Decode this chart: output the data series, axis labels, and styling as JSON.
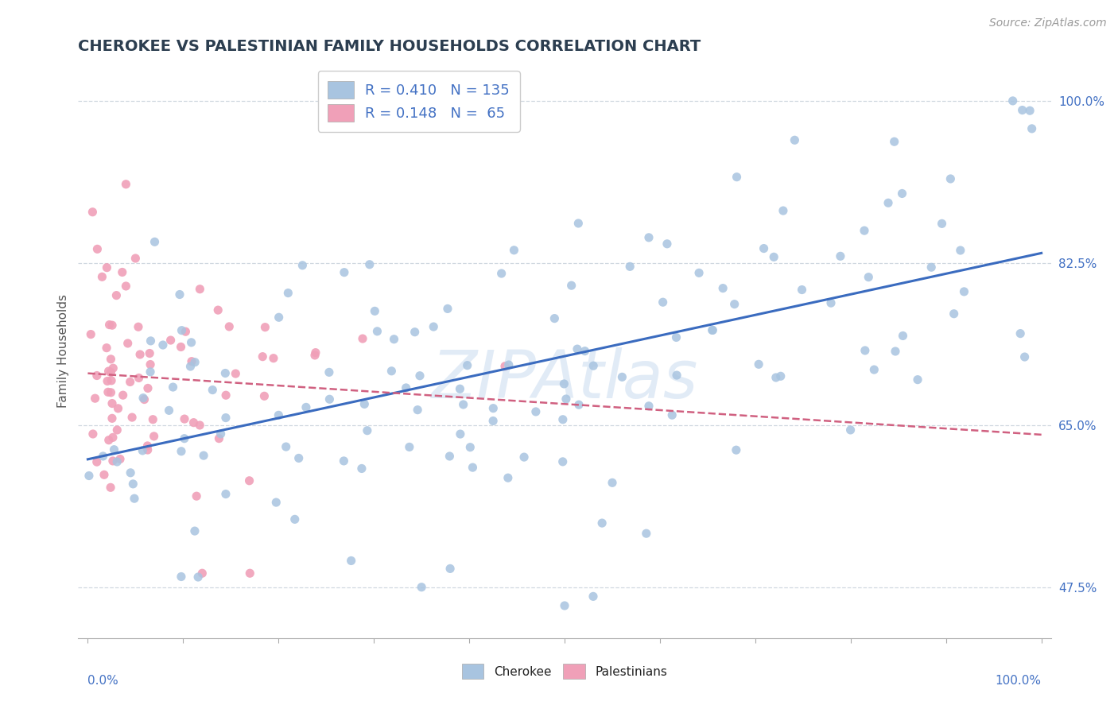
{
  "title": "CHEROKEE VS PALESTINIAN FAMILY HOUSEHOLDS CORRELATION CHART",
  "source": "Source: ZipAtlas.com",
  "ylabel": "Family Households",
  "yticks": [
    47.5,
    65.0,
    82.5,
    100.0
  ],
  "ytick_labels": [
    "47.5%",
    "65.0%",
    "82.5%",
    "100.0%"
  ],
  "xlim": [
    -0.01,
    1.01
  ],
  "ylim": [
    0.42,
    1.04
  ],
  "cherokee_R": 0.41,
  "cherokee_N": 135,
  "palestinian_R": 0.148,
  "palestinian_N": 65,
  "cherokee_color": "#a8c4e0",
  "cherokee_line_color": "#3a6bbf",
  "palestinian_color": "#f0a0b8",
  "palestinian_line_color": "#d06080",
  "watermark": "ZIPAtlas",
  "background_color": "#ffffff",
  "grid_color": "#d0d8e0"
}
